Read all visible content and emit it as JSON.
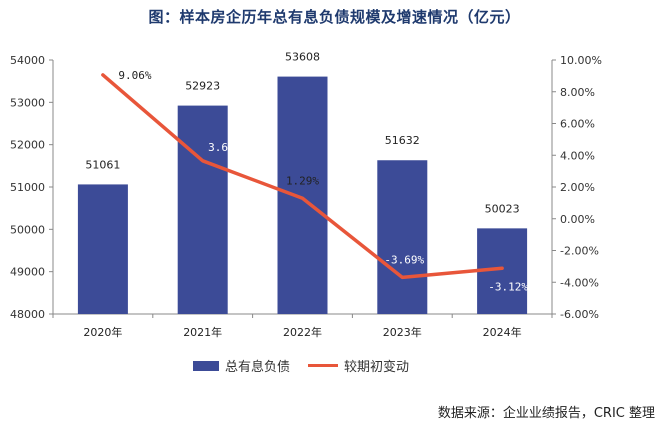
{
  "title": "图：样本房企历年总有息负债规模及增速情况（亿元）",
  "source": "数据来源：企业业绩报告，CRIC 整理",
  "legend": {
    "bar_label": "总有息负债",
    "line_label": "较期初变动"
  },
  "chart_data": {
    "type": "bar",
    "categories": [
      "2020年",
      "2021年",
      "2022年",
      "2023年",
      "2024年"
    ],
    "series": [
      {
        "name": "总有息负债",
        "type": "bar",
        "axis": "left",
        "values": [
          51061,
          52923,
          53608,
          51632,
          50023
        ],
        "labels": [
          "51061",
          "52923",
          "53608",
          "51632",
          "50023"
        ],
        "color": "#3c4b97"
      },
      {
        "name": "较期初变动",
        "type": "line",
        "axis": "right",
        "values": [
          9.06,
          3.65,
          1.29,
          -3.69,
          -3.12
        ],
        "labels": [
          "9.06%",
          "3.65%",
          "1.29%",
          "-3.69%",
          "-3.12%"
        ],
        "color": "#e8563a"
      }
    ],
    "y_left": {
      "range": [
        48000,
        54000
      ],
      "ticks": [
        "48000",
        "49000",
        "50000",
        "51000",
        "52000",
        "53000",
        "54000"
      ]
    },
    "y_right": {
      "range": [
        -6,
        10
      ],
      "ticks": [
        "-6.00%",
        "-4.00%",
        "-2.00%",
        "0.00%",
        "2.00%",
        "4.00%",
        "6.00%",
        "8.00%",
        "10.00%"
      ]
    },
    "grid": false,
    "legend_position": "bottom"
  }
}
